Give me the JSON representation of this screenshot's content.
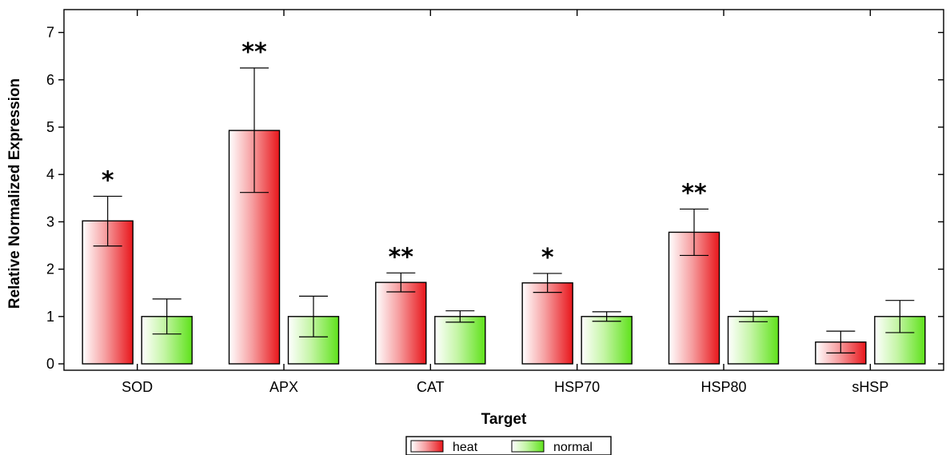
{
  "chart_data": {
    "type": "bar",
    "xlabel": "Target",
    "ylabel": "Relative Normalized Expression",
    "ylim": [
      0,
      7.4
    ],
    "yticks": [
      0,
      1,
      2,
      3,
      4,
      5,
      6,
      7
    ],
    "categories": [
      "SOD",
      "APX",
      "CAT",
      "HSP70",
      "HSP80",
      "sHSP"
    ],
    "series": [
      {
        "name": "heat",
        "color": "#e8161b",
        "values": [
          3.02,
          4.93,
          1.72,
          1.71,
          2.78,
          0.46
        ],
        "err_low": [
          2.49,
          3.62,
          1.52,
          1.51,
          2.29,
          0.23
        ],
        "err_high": [
          3.54,
          6.25,
          1.92,
          1.91,
          3.27,
          0.69
        ]
      },
      {
        "name": "normal",
        "color": "#5fe21b",
        "values": [
          1.0,
          1.0,
          1.0,
          1.0,
          1.0,
          1.0
        ],
        "err_low": [
          0.63,
          0.57,
          0.88,
          0.9,
          0.89,
          0.66
        ],
        "err_high": [
          1.37,
          1.43,
          1.12,
          1.1,
          1.11,
          1.34
        ]
      }
    ],
    "significance": [
      "*",
      "**",
      "**",
      "*",
      "**",
      ""
    ],
    "legend_position": "bottom-center",
    "grid": false
  }
}
